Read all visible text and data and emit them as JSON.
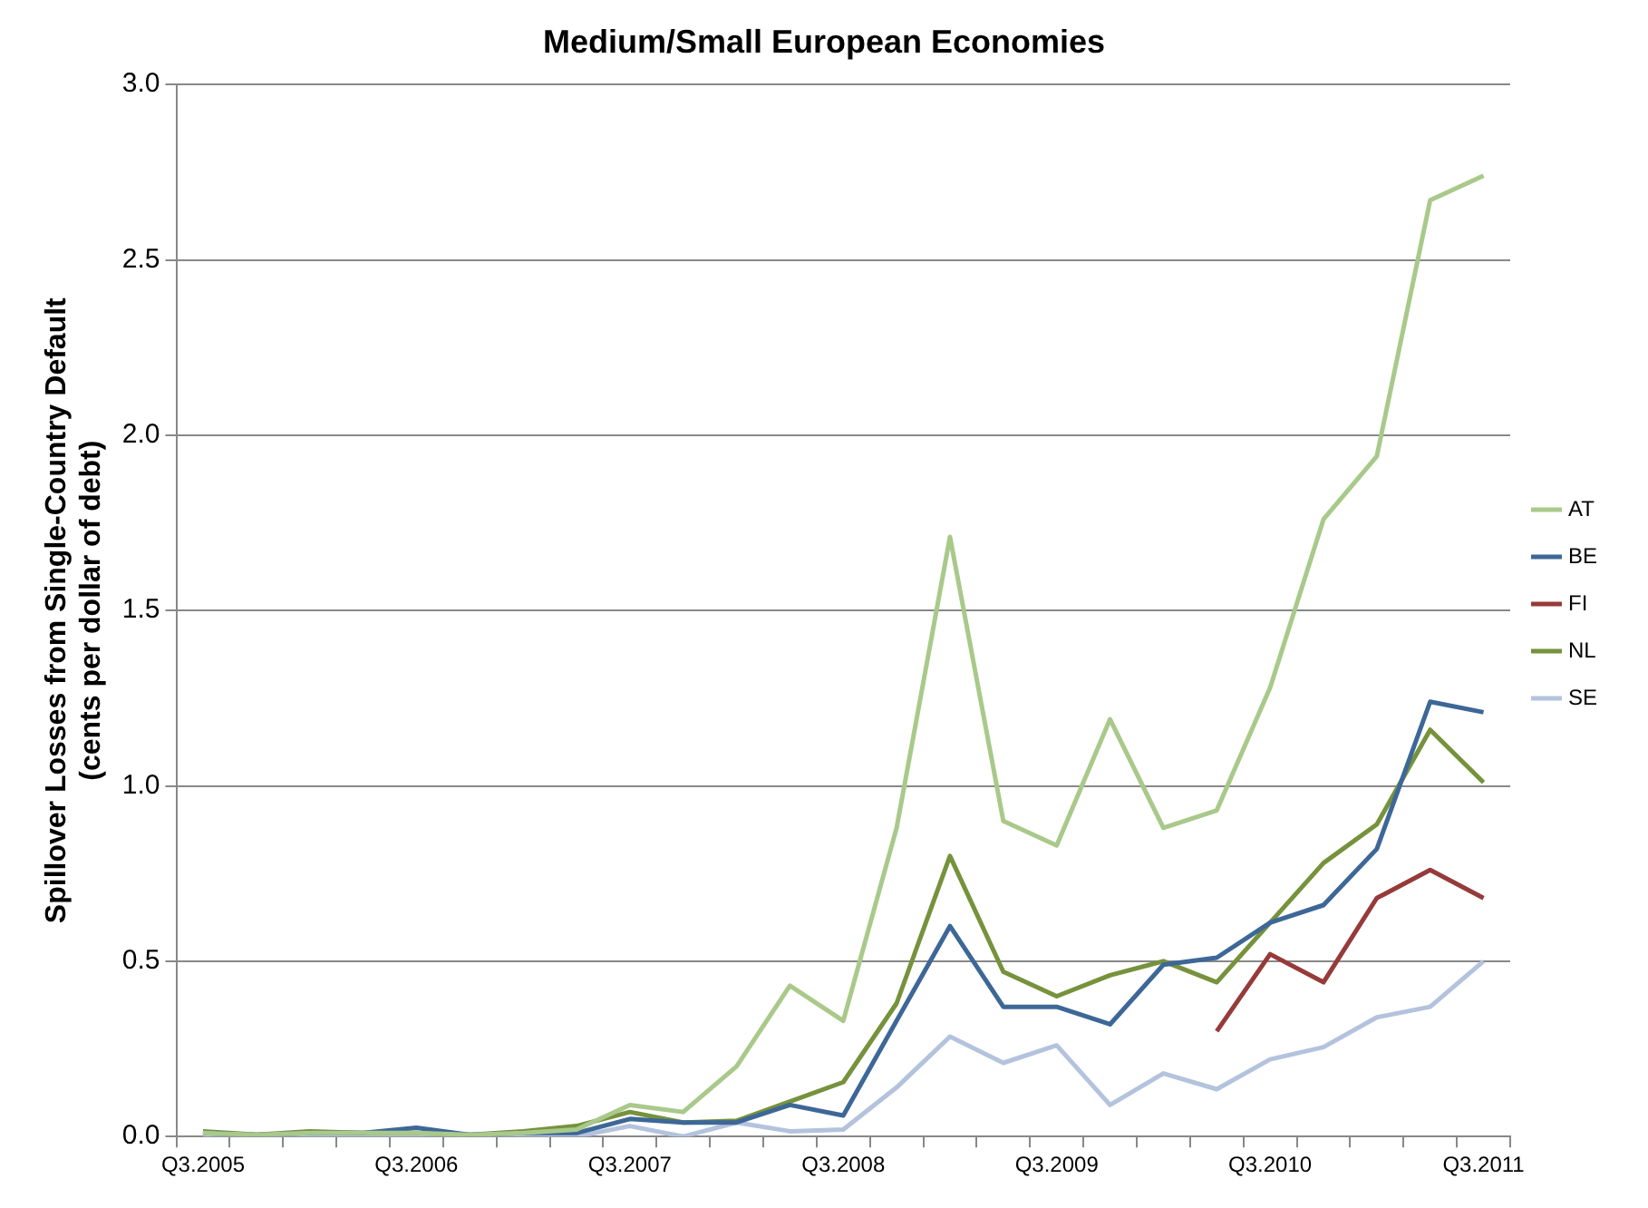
{
  "chart_data": {
    "type": "line",
    "title": "Medium/Small European Economies",
    "ylabel": "Spillover Losses from Single-Country Default\n(cents per dollar of debt)",
    "categories": [
      "Q3.2005",
      null,
      null,
      null,
      "Q3.2006",
      null,
      null,
      null,
      "Q3.2007",
      null,
      null,
      null,
      "Q3.2008",
      null,
      null,
      null,
      "Q3.2009",
      null,
      null,
      null,
      "Q3.2010",
      null,
      null,
      null,
      "Q3.2011"
    ],
    "series": [
      {
        "name": "AT",
        "color": "#a9c98a",
        "values": [
          0.01,
          0.005,
          0.01,
          0.01,
          0.01,
          0.005,
          0.01,
          0.02,
          0.09,
          0.07,
          0.2,
          0.43,
          0.33,
          0.88,
          1.71,
          0.9,
          0.83,
          1.19,
          0.88,
          0.93,
          1.28,
          1.76,
          1.94,
          2.67,
          2.74
        ]
      },
      {
        "name": "BE",
        "color": "#3d6797",
        "values": [
          0.01,
          0.005,
          0.01,
          0.01,
          0.025,
          0.005,
          0.01,
          0.01,
          0.05,
          0.04,
          0.04,
          0.09,
          0.06,
          0.33,
          0.6,
          0.37,
          0.37,
          0.32,
          0.49,
          0.51,
          0.61,
          0.66,
          0.82,
          1.24,
          1.21
        ]
      },
      {
        "name": "FI",
        "color": "#963a3a",
        "values": [
          null,
          null,
          null,
          null,
          null,
          null,
          null,
          null,
          null,
          null,
          null,
          null,
          null,
          null,
          null,
          null,
          null,
          null,
          null,
          0.3,
          0.52,
          0.44,
          0.68,
          0.76,
          0.68
        ]
      },
      {
        "name": "NL",
        "color": "#76923c",
        "values": [
          0.015,
          0.005,
          0.015,
          0.01,
          0.01,
          0.005,
          0.015,
          0.03,
          0.07,
          0.04,
          0.045,
          0.1,
          0.155,
          0.38,
          0.8,
          0.47,
          0.4,
          0.46,
          0.5,
          0.44,
          0.61,
          0.78,
          0.89,
          1.16,
          1.01
        ]
      },
      {
        "name": "SE",
        "color": "#b4c3dd",
        "values": [
          0,
          0,
          0,
          0,
          0,
          0,
          0,
          0,
          0.03,
          0,
          0.04,
          0.015,
          0.02,
          0.14,
          0.285,
          0.21,
          0.26,
          0.09,
          0.18,
          0.135,
          0.22,
          0.255,
          0.34,
          0.37,
          0.5
        ]
      }
    ],
    "ylim": [
      0,
      3
    ],
    "yticks": [
      {
        "value": 0,
        "label": "0.0"
      },
      {
        "value": 0.5,
        "label": "0.5"
      },
      {
        "value": 1,
        "label": "1.0"
      },
      {
        "value": 1.5,
        "label": "1.5"
      },
      {
        "value": 2,
        "label": "2.0"
      },
      {
        "value": 2.5,
        "label": "2.5"
      },
      {
        "value": 3,
        "label": "3.0"
      }
    ],
    "grid": "y",
    "legend": "right",
    "marker": "none",
    "line_style": "solid"
  }
}
